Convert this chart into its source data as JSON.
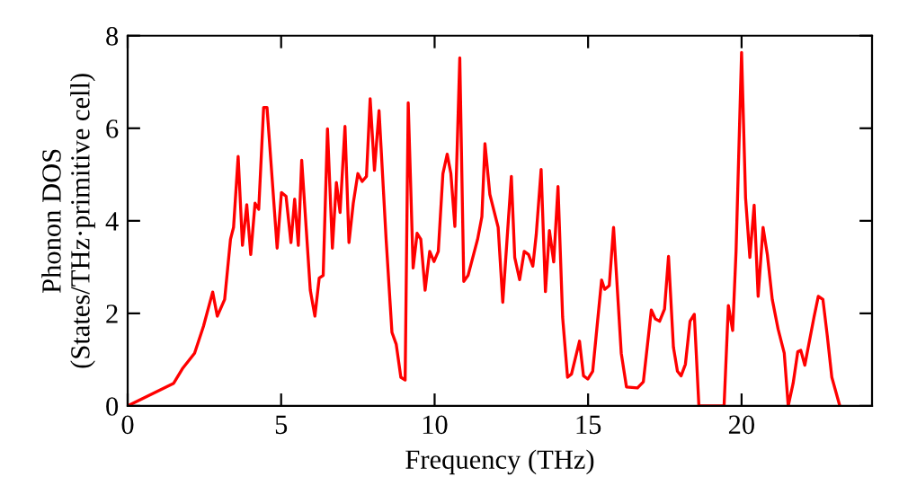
{
  "chart_data": {
    "type": "line",
    "xlabel": "Frequency (THz)",
    "ylabel": "Phonon DOS\n(States/THz·primitive cell)",
    "x": [
      0,
      1.5,
      1.8,
      2.18,
      2.47,
      2.77,
      2.92,
      3.16,
      3.35,
      3.45,
      3.6,
      3.74,
      3.88,
      4.01,
      4.15,
      4.27,
      4.43,
      4.54,
      4.87,
      5.01,
      5.16,
      5.32,
      5.44,
      5.56,
      5.67,
      5.95,
      6.1,
      6.24,
      6.37,
      6.51,
      6.67,
      6.8,
      6.92,
      7.08,
      7.21,
      7.35,
      7.5,
      7.64,
      7.78,
      7.9,
      8.04,
      8.19,
      8.42,
      8.61,
      8.75,
      8.9,
      9.04,
      9.14,
      9.3,
      9.43,
      9.55,
      9.69,
      9.84,
      9.98,
      10.12,
      10.27,
      10.41,
      10.53,
      10.66,
      10.82,
      10.95,
      11.09,
      11.4,
      11.54,
      11.64,
      11.8,
      12.07,
      12.22,
      12.5,
      12.61,
      12.77,
      12.92,
      13.06,
      13.2,
      13.31,
      13.47,
      13.61,
      13.74,
      13.88,
      14.02,
      14.17,
      14.33,
      14.46,
      14.72,
      14.85,
      14.99,
      15.15,
      15.44,
      15.54,
      15.69,
      15.83,
      16.08,
      16.25,
      16.61,
      16.8,
      17.06,
      17.19,
      17.33,
      17.49,
      17.62,
      17.78,
      17.91,
      18.03,
      18.17,
      18.32,
      18.46,
      18.61,
      19.43,
      19.57,
      19.71,
      19.82,
      20.0,
      20.13,
      20.27,
      20.41,
      20.54,
      20.7,
      20.84,
      21.0,
      21.19,
      21.39,
      21.52,
      21.68,
      21.83,
      21.93,
      22.06,
      22.36,
      22.5,
      22.65,
      22.79,
      22.94,
      23.2
    ],
    "series": [
      {
        "color": "#ff0000",
        "values": [
          0,
          0.49,
          0.82,
          1.14,
          1.72,
          2.46,
          1.94,
          2.3,
          3.6,
          3.86,
          5.39,
          3.47,
          4.35,
          3.27,
          4.38,
          4.25,
          6.45,
          6.45,
          3.41,
          4.61,
          4.53,
          3.53,
          4.47,
          3.47,
          5.31,
          2.5,
          1.94,
          2.76,
          2.82,
          5.99,
          3.41,
          4.83,
          4.18,
          6.04,
          3.53,
          4.38,
          5.02,
          4.85,
          4.96,
          6.64,
          5.09,
          6.38,
          3.6,
          1.59,
          1.33,
          0.62,
          0.56,
          6.55,
          2.98,
          3.73,
          3.6,
          2.5,
          3.34,
          3.12,
          3.34,
          5.02,
          5.44,
          5.02,
          3.88,
          7.52,
          2.69,
          2.82,
          3.6,
          4.09,
          5.67,
          4.57,
          3.86,
          2.24,
          4.96,
          3.21,
          2.73,
          3.34,
          3.27,
          3.02,
          3.7,
          5.11,
          2.47,
          3.79,
          3.11,
          4.74,
          1.92,
          0.62,
          0.69,
          1.4,
          0.65,
          0.58,
          0.75,
          2.72,
          2.52,
          2.6,
          3.86,
          1.14,
          0.41,
          0.39,
          0.52,
          2.07,
          1.88,
          1.83,
          2.09,
          3.23,
          1.27,
          0.75,
          0.65,
          0.9,
          1.83,
          1.98,
          0,
          0,
          2.17,
          1.63,
          3.34,
          7.64,
          4.5,
          3.21,
          4.34,
          2.37,
          3.86,
          3.27,
          2.3,
          1.66,
          1.14,
          0,
          0.49,
          1.17,
          1.2,
          0.88,
          1.92,
          2.37,
          2.3,
          1.53,
          0.62,
          0
        ]
      }
    ],
    "xlim": [
      0,
      24.25
    ],
    "ylim": [
      0,
      8
    ],
    "xticks": [
      0,
      5,
      10,
      15,
      20
    ],
    "yticks": [
      0,
      2,
      4,
      6,
      8
    ],
    "grid": false,
    "legend": false,
    "marker": "none",
    "line_style": "solid"
  }
}
